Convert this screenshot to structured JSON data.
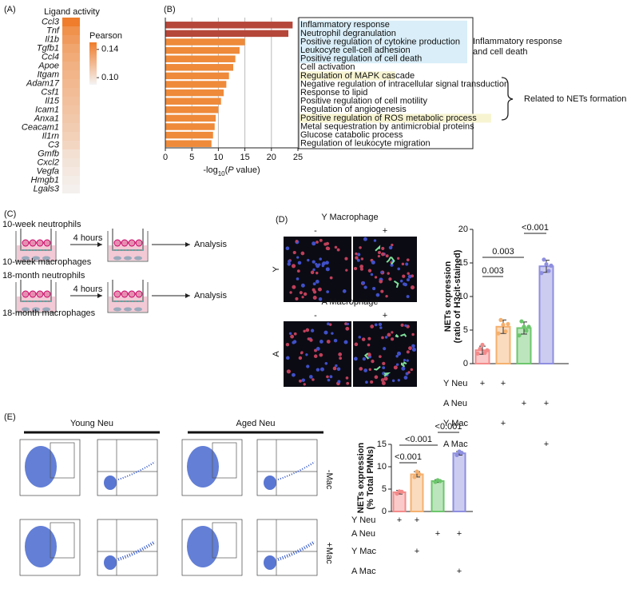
{
  "panel_labels": [
    "(A)",
    "(B)",
    "(C)",
    "(D)",
    "(E)"
  ],
  "chart_data": [
    {
      "type": "heatmap",
      "title": "Ligand activity",
      "categories": [
        "Ccl3",
        "Tnf",
        "Il1b",
        "Tgfb1",
        "Ccl4",
        "Apoe",
        "Itgam",
        "Adam17",
        "Csf1",
        "Il15",
        "Icam1",
        "Anxa1",
        "Ceacam1",
        "Il1rn",
        "C3",
        "Gmfb",
        "Cxcl2",
        "Vegfa",
        "Hmgb1",
        "Lgals3"
      ],
      "values": [
        0.15,
        0.14,
        0.135,
        0.13,
        0.127,
        0.124,
        0.122,
        0.12,
        0.118,
        0.116,
        0.114,
        0.112,
        0.11,
        0.108,
        0.105,
        0.1,
        0.098,
        0.096,
        0.094,
        0.092
      ],
      "colorbar": {
        "label": "Pearson",
        "lim": [
          0.09,
          0.15
        ],
        "colors": [
          "#f4f4f4",
          "#ef7d2b"
        ],
        "ticks": [
          0.14,
          {
            "value": 0.1,
            "label": "0.10"
          }
        ]
      }
    },
    {
      "type": "hbar",
      "categories": [
        "Inflammatory response",
        "Neutrophil degranulation",
        "Positive regulation of cytokine production",
        "Leukocyte cell-cell adhesion",
        "Positive regulation of cell death",
        "Cell activation",
        "Regulation of MAPK cascade",
        "Negative regulation of intracellular signal transduction",
        "Response to lipid",
        "Positive regulation of cell motility",
        "Regulation of angiogenesis",
        "Positive regulation of ROS metabolic process",
        "Metal sequestration by antimicrobial proteins",
        "Glucose catabolic process",
        "Regulation of leukocyte migration"
      ],
      "values": [
        24,
        23.2,
        15,
        14,
        13.2,
        12.8,
        12,
        11.5,
        11,
        10.5,
        10,
        9.5,
        9.3,
        9,
        8.7
      ],
      "colors": [
        "#b5473a",
        "#b5473a",
        "#ee8a3a",
        "#ee8a3a",
        "#ee8a3a",
        "#ee8a3a",
        "#ee8a3a",
        "#ee8a3a",
        "#ee8a3a",
        "#ee8a3a",
        "#ee8a3a",
        "#ee8a3a",
        "#ee8a3a",
        "#ee8a3a",
        "#ee8a3a"
      ],
      "highlights": [
        "#d9eef8",
        "#d9eef8",
        "#d9eef8",
        "#d9eef8",
        "#d9eef8",
        null,
        "#f7f4d2",
        null,
        null,
        null,
        null,
        "#f7f4d2",
        null,
        null,
        null
      ],
      "xlim": [
        0,
        25
      ],
      "xticks": [
        0,
        5,
        10,
        15,
        20,
        25
      ],
      "grid": true,
      "xlabel": [
        "-log",
        "10",
        "(",
        "P",
        " value)"
      ],
      "groups": [
        {
          "lines": [
            "Inflammatory response",
            "and cell death"
          ],
          "color": "#29a8d0"
        },
        {
          "lines": [
            "Related to NETs formation"
          ],
          "color": "#e8922e"
        }
      ]
    },
    {
      "type": "dotbar",
      "ylabel": [
        "NETs expression",
        "(ratio of H3cit-stained)"
      ],
      "ylim": [
        0,
        20
      ],
      "yticks": [
        0,
        5,
        10,
        15,
        20
      ],
      "values": [
        2.0,
        5.5,
        5.3,
        14.5
      ],
      "errors": [
        0.6,
        1.0,
        0.9,
        0.9
      ],
      "points": [
        [
          1.5,
          2.2,
          2.8,
          1.6,
          2.0
        ],
        [
          4.5,
          6.5,
          5.8,
          4.8,
          5.9
        ],
        [
          4.2,
          6.3,
          5.5,
          4.9,
          5.5
        ],
        [
          13.5,
          15.5,
          14.8,
          13.8,
          14.6
        ]
      ],
      "colors": [
        "#f48a8a",
        "#f5b06e",
        "#6cc66c",
        "#8e8ee0"
      ],
      "comparisons": [
        {
          "pair": [
            0,
            1
          ],
          "label": "0.003"
        },
        {
          "pair": [
            0,
            2
          ],
          "label": "0.003"
        },
        {
          "pair": [
            2,
            3
          ],
          "label": "<0.001"
        }
      ],
      "conditions": [
        {
          "label": "Y Neu",
          "signs": [
            "+",
            "+",
            null,
            null
          ]
        },
        {
          "label": "A Neu",
          "signs": [
            null,
            null,
            "+",
            "+"
          ]
        },
        {
          "label": "Y Mac",
          "signs": [
            null,
            "+",
            null,
            null
          ]
        },
        {
          "label": "A Mac",
          "signs": [
            null,
            null,
            null,
            "+"
          ]
        }
      ]
    },
    {
      "type": "dotbar",
      "ylabel": [
        "NETs expression",
        "(% Total PMNs)"
      ],
      "ylim": [
        0,
        15
      ],
      "yticks": [
        0,
        5,
        10,
        15
      ],
      "values": [
        4.3,
        8.3,
        6.8,
        13.0
      ],
      "errors": [
        0.4,
        0.6,
        0.3,
        0.4
      ],
      "points": [
        [
          4.0,
          4.5,
          4.4
        ],
        [
          7.7,
          8.9,
          8.3
        ],
        [
          6.6,
          7.0,
          6.8
        ],
        [
          12.6,
          13.4,
          13.1
        ]
      ],
      "colors": [
        "#f48a8a",
        "#f5b06e",
        "#6cc66c",
        "#8e8ee0"
      ],
      "comparisons": [
        {
          "pair": [
            0,
            1
          ],
          "label": "<0.001"
        },
        {
          "pair": [
            0,
            2
          ],
          "label": "<0.001"
        },
        {
          "pair": [
            2,
            3
          ],
          "label": "<0.001"
        }
      ],
      "conditions": [
        {
          "label": "Y Neu",
          "signs": [
            "+",
            "+",
            null,
            null
          ]
        },
        {
          "label": "A Neu",
          "signs": [
            null,
            null,
            "+",
            "+"
          ]
        },
        {
          "label": "Y Mac",
          "signs": [
            null,
            "+",
            null,
            null
          ]
        },
        {
          "label": "A Mac",
          "signs": [
            null,
            null,
            null,
            "+"
          ]
        }
      ]
    }
  ],
  "diagram_c": {
    "rows": [
      {
        "top": "10-week neutrophils",
        "time": "4 hours",
        "result": "Analysis",
        "bottom": "10-week macrophages"
      },
      {
        "top": "18-month neutrophils",
        "time": "4 hours",
        "result": "Analysis",
        "bottom": "18-month macrophages"
      }
    ]
  },
  "micrographs": {
    "rows": [
      {
        "title": "Y Macrophage",
        "minus": "-",
        "plus": "+",
        "side": "Y"
      },
      {
        "title": "A Macrophage",
        "minus": "-",
        "plus": "+",
        "side": "A"
      }
    ]
  },
  "flow": {
    "columns": [
      "Young Neu",
      "Aged Neu"
    ],
    "rows": [
      "-Mac",
      "+Mac"
    ]
  }
}
